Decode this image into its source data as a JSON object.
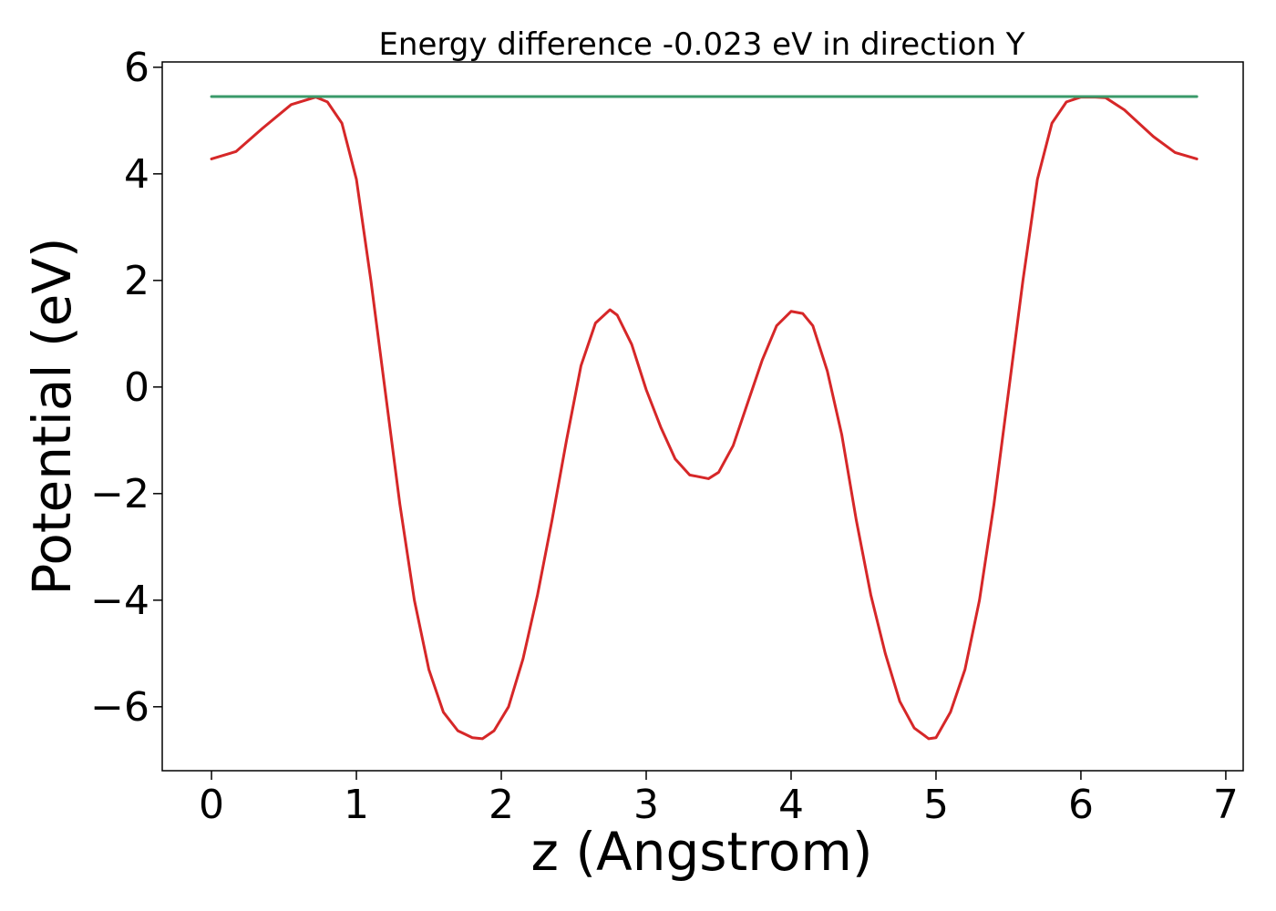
{
  "chart_data": {
    "type": "line",
    "title": "Energy difference -0.023 eV in direction Y",
    "xlabel": "z (Angstrom)",
    "ylabel": "Potential (eV)",
    "xlim": [
      -0.34,
      7.12
    ],
    "ylim": [
      -7.2,
      6.1
    ],
    "xticks": [
      0,
      1,
      2,
      3,
      4,
      5,
      6,
      7
    ],
    "xtick_labels": [
      "0",
      "1",
      "2",
      "3",
      "4",
      "5",
      "6",
      "7"
    ],
    "yticks": [
      -6,
      -4,
      -2,
      0,
      2,
      4,
      6
    ],
    "ytick_labels": [
      "−6",
      "−4",
      "−2",
      "0",
      "2",
      "4",
      "6"
    ],
    "grid": false,
    "series": [
      {
        "color": "#d62728",
        "x": [
          0.0,
          0.17,
          0.35,
          0.55,
          0.72,
          0.8,
          0.9,
          1.0,
          1.1,
          1.2,
          1.3,
          1.4,
          1.5,
          1.6,
          1.7,
          1.8,
          1.87,
          1.95,
          2.05,
          2.15,
          2.25,
          2.35,
          2.45,
          2.55,
          2.65,
          2.75,
          2.8,
          2.9,
          3.0,
          3.1,
          3.2,
          3.3,
          3.43,
          3.5,
          3.6,
          3.7,
          3.8,
          3.9,
          4.0,
          4.08,
          4.15,
          4.25,
          4.35,
          4.45,
          4.55,
          4.65,
          4.75,
          4.85,
          4.95,
          5.0,
          5.1,
          5.2,
          5.3,
          5.4,
          5.5,
          5.6,
          5.7,
          5.8,
          5.9,
          6.0,
          6.1,
          6.17,
          6.3,
          6.5,
          6.65,
          6.8
        ],
        "y": [
          4.28,
          4.42,
          4.85,
          5.3,
          5.44,
          5.35,
          4.95,
          3.9,
          2.0,
          -0.1,
          -2.2,
          -4.0,
          -5.3,
          -6.1,
          -6.45,
          -6.58,
          -6.6,
          -6.45,
          -6.0,
          -5.1,
          -3.9,
          -2.5,
          -1.0,
          0.4,
          1.2,
          1.45,
          1.35,
          0.8,
          -0.05,
          -0.75,
          -1.35,
          -1.65,
          -1.72,
          -1.6,
          -1.1,
          -0.3,
          0.5,
          1.15,
          1.42,
          1.38,
          1.15,
          0.3,
          -0.9,
          -2.5,
          -3.9,
          -5.0,
          -5.9,
          -6.4,
          -6.6,
          -6.58,
          -6.1,
          -5.3,
          -4.0,
          -2.2,
          -0.1,
          2.0,
          3.9,
          4.95,
          5.35,
          5.44,
          5.44,
          5.43,
          5.2,
          4.7,
          4.4,
          4.28
        ]
      },
      {
        "color": "#3a9a6a",
        "x": [
          0.0,
          6.8
        ],
        "y": [
          5.45,
          5.45
        ]
      }
    ]
  }
}
